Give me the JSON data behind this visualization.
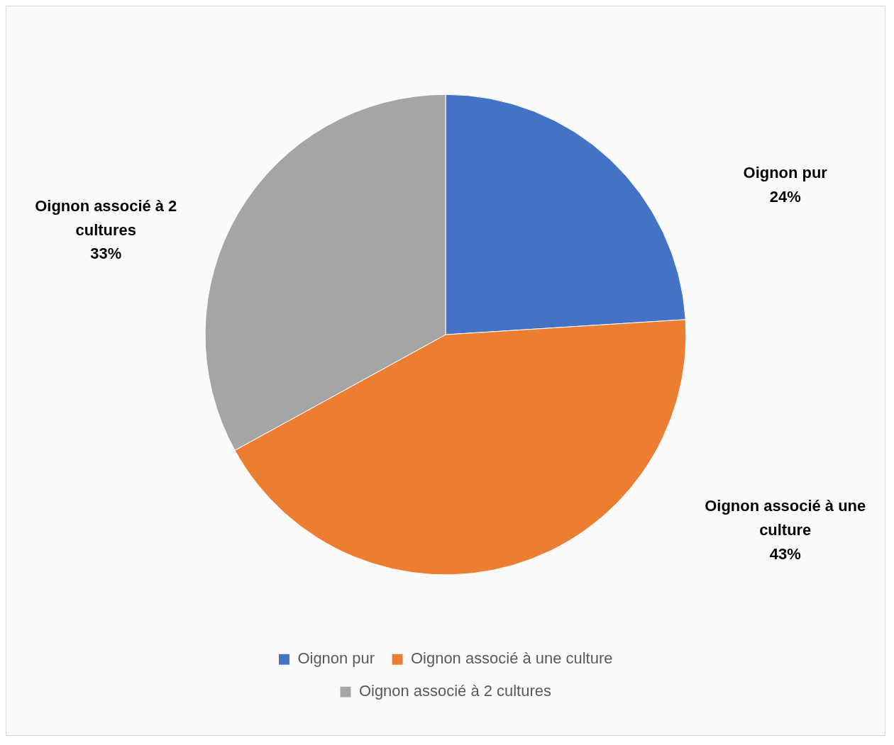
{
  "chart_data": {
    "type": "pie",
    "categories": [
      "Oignon pur",
      "Oignon associé à une culture",
      "Oignon associé à 2 cultures"
    ],
    "values": [
      24,
      43,
      33
    ],
    "colors": [
      "#4472c4",
      "#ed7d31",
      "#a5a5a5"
    ],
    "value_labels": [
      "24%",
      "43%",
      "33%"
    ],
    "legend": "bottom"
  }
}
